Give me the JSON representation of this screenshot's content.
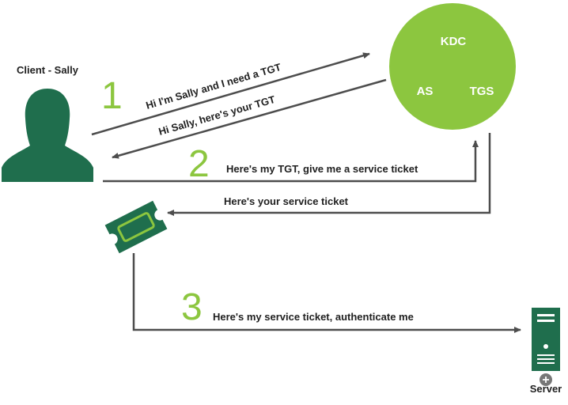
{
  "client": {
    "label": "Client - Sally"
  },
  "kdc": {
    "title": "KDC",
    "as_label": "AS",
    "tgs_label": "TGS"
  },
  "steps": {
    "one": "1",
    "two": "2",
    "three": "3"
  },
  "messages": {
    "request_tgt": "Hi I'm Sally and I need a TGT",
    "reply_tgt": "Hi Sally, here's your TGT",
    "request_service_ticket": "Here's my TGT, give me a service ticket",
    "reply_service_ticket": "Here's your service ticket",
    "authenticate": "Here's my service ticket, authenticate me"
  },
  "server": {
    "label": "Server"
  },
  "colors": {
    "accent_green": "#8cc63f",
    "dark_green": "#1f6e4d",
    "arrow_gray": "#4d4d4d",
    "text": "#1f1f1f"
  },
  "icons": [
    "person-icon",
    "ticket-icon",
    "server-icon",
    "plus-icon"
  ]
}
